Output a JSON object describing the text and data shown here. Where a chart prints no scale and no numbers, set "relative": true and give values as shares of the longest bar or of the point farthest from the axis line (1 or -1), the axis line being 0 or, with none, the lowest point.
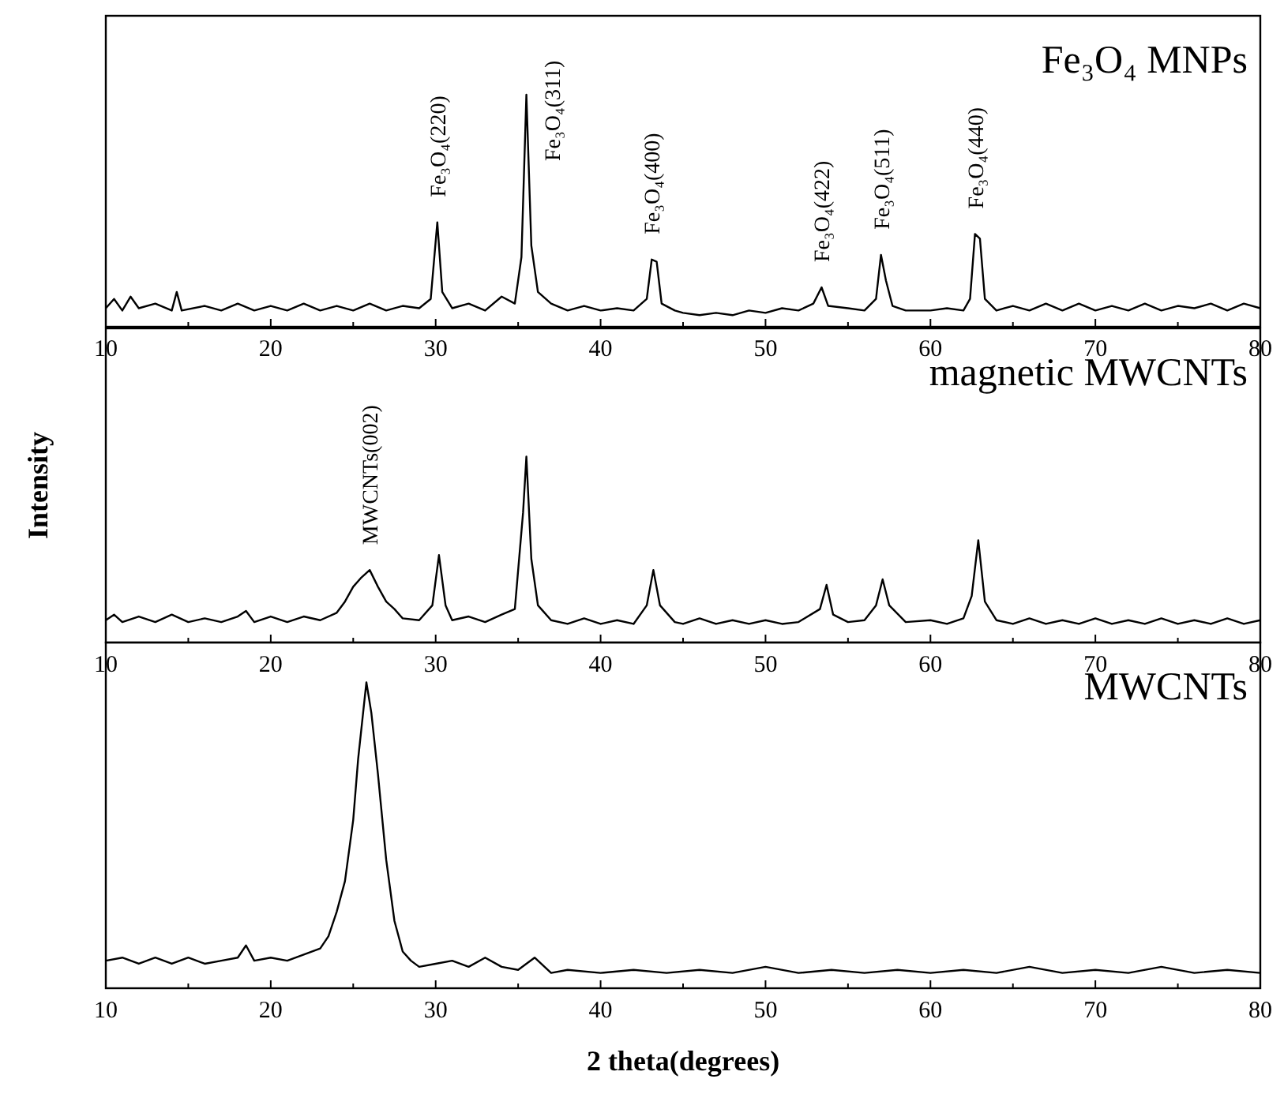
{
  "chart_data": [
    {
      "type": "line",
      "title": "Fe₃O₄ MNPs",
      "relative": true,
      "xlim": [
        10,
        80
      ],
      "xticks": [
        10,
        {
          "value": 15,
          "label": null
        },
        20,
        {
          "value": 25,
          "label": null
        },
        30,
        {
          "value": 35,
          "label": null
        },
        40,
        {
          "value": 45,
          "label": null
        },
        50,
        {
          "value": 55,
          "label": null
        },
        60,
        {
          "value": 65,
          "label": null
        },
        70,
        {
          "value": 75,
          "label": null
        },
        80
      ],
      "x": [
        10,
        10.5,
        11,
        11.5,
        12,
        13,
        14,
        14.3,
        14.6,
        16,
        17,
        18,
        19,
        20,
        21,
        22,
        23,
        24,
        25,
        26,
        27,
        28,
        29,
        29.7,
        30.1,
        30.4,
        31,
        32,
        33,
        34,
        34.8,
        35.2,
        35.5,
        35.8,
        36.2,
        37,
        38,
        39,
        40,
        41,
        42,
        42.8,
        43.1,
        43.4,
        43.7,
        44.5,
        45,
        46,
        47,
        48,
        49,
        50,
        51,
        52,
        52.9,
        53.4,
        53.8,
        55,
        56,
        56.7,
        57.0,
        57.3,
        57.7,
        58.5,
        60,
        61,
        62,
        62.4,
        62.7,
        63,
        63.3,
        64,
        65,
        66,
        67,
        68,
        69,
        70,
        71,
        72,
        73,
        74,
        75,
        76,
        77,
        78,
        79,
        80
      ],
      "series": [
        {
          "color": "#000000",
          "values": [
            0.08,
            0.12,
            0.07,
            0.13,
            0.08,
            0.1,
            0.07,
            0.15,
            0.07,
            0.09,
            0.07,
            0.1,
            0.07,
            0.09,
            0.07,
            0.1,
            0.07,
            0.09,
            0.07,
            0.1,
            0.07,
            0.09,
            0.08,
            0.12,
            0.45,
            0.15,
            0.08,
            0.1,
            0.07,
            0.13,
            0.1,
            0.3,
            1,
            0.35,
            0.15,
            0.1,
            0.07,
            0.09,
            0.07,
            0.08,
            0.07,
            0.12,
            0.29,
            0.28,
            0.1,
            0.07,
            0.06,
            0.05,
            0.06,
            0.05,
            0.07,
            0.06,
            0.08,
            0.07,
            0.1,
            0.17,
            0.09,
            0.08,
            0.07,
            0.12,
            0.31,
            0.2,
            0.09,
            0.07,
            0.07,
            0.08,
            0.07,
            0.12,
            0.4,
            0.38,
            0.12,
            0.07,
            0.09,
            0.07,
            0.1,
            0.07,
            0.1,
            0.07,
            0.09,
            0.07,
            0.1,
            0.07,
            0.09,
            0.08,
            0.1,
            0.07,
            0.1,
            0.08
          ]
        }
      ],
      "annotations": [
        {
          "text": "Fe₃O₄(220)",
          "x": 30.1,
          "y": 0.45
        },
        {
          "text": "Fe₃O₄(311)",
          "x": 35.5,
          "y": 1
        },
        {
          "text": "Fe₃O₄(400)",
          "x": 43.1,
          "y": 0.29
        },
        {
          "text": "Fe₃O₄(422)",
          "x": 53.4,
          "y": 0.17
        },
        {
          "text": "Fe₃O₄(511)",
          "x": 57.0,
          "y": 0.31
        },
        {
          "text": "Fe₃O₄(440)",
          "x": 62.7,
          "y": 0.4
        }
      ]
    },
    {
      "type": "line",
      "title": "magnetic MWCNTs",
      "ylabel": "Intensity",
      "relative": true,
      "xlim": [
        10,
        80
      ],
      "xticks": [
        10,
        {
          "value": 15,
          "label": null
        },
        20,
        {
          "value": 25,
          "label": null
        },
        30,
        {
          "value": 35,
          "label": null
        },
        40,
        {
          "value": 45,
          "label": null
        },
        50,
        {
          "value": 55,
          "label": null
        },
        60,
        {
          "value": 65,
          "label": null
        },
        70,
        {
          "value": 75,
          "label": null
        },
        80
      ],
      "x": [
        10,
        10.5,
        11,
        12,
        13,
        14,
        15,
        16,
        17,
        18,
        18.5,
        19,
        20,
        21,
        22,
        23,
        24,
        24.5,
        25,
        25.5,
        26,
        26.5,
        27,
        27.5,
        28,
        29,
        29.8,
        30.2,
        30.6,
        31,
        32,
        33,
        34,
        34.8,
        35.3,
        35.5,
        35.8,
        36.2,
        37,
        38,
        39,
        40,
        41,
        42,
        42.8,
        43.2,
        43.6,
        44.5,
        45,
        46,
        47,
        48,
        49,
        50,
        51,
        52,
        53.3,
        53.7,
        54.1,
        55,
        56,
        56.7,
        57.1,
        57.5,
        58.5,
        60,
        61,
        62,
        62.5,
        62.9,
        63.3,
        64,
        65,
        66,
        67,
        68,
        69,
        70,
        71,
        72,
        73,
        74,
        75,
        76,
        77,
        78,
        79,
        80
      ],
      "series": [
        {
          "color": "#000000",
          "values": [
            0.12,
            0.15,
            0.11,
            0.14,
            0.11,
            0.15,
            0.11,
            0.13,
            0.11,
            0.14,
            0.17,
            0.11,
            0.14,
            0.11,
            0.14,
            0.12,
            0.16,
            0.22,
            0.3,
            0.35,
            0.39,
            0.3,
            0.22,
            0.18,
            0.13,
            0.12,
            0.2,
            0.47,
            0.2,
            0.12,
            0.14,
            0.11,
            0.15,
            0.18,
            0.7,
            1,
            0.45,
            0.2,
            0.12,
            0.1,
            0.13,
            0.1,
            0.12,
            0.1,
            0.2,
            0.39,
            0.2,
            0.11,
            0.1,
            0.13,
            0.1,
            0.12,
            0.1,
            0.12,
            0.1,
            0.11,
            0.18,
            0.31,
            0.15,
            0.11,
            0.12,
            0.2,
            0.34,
            0.2,
            0.11,
            0.12,
            0.1,
            0.13,
            0.25,
            0.55,
            0.22,
            0.12,
            0.1,
            0.13,
            0.1,
            0.12,
            0.1,
            0.13,
            0.1,
            0.12,
            0.1,
            0.13,
            0.1,
            0.12,
            0.1,
            0.13,
            0.1,
            0.12
          ]
        }
      ],
      "annotations": [
        {
          "text": "MWCNTs(002)",
          "x": 26,
          "y": 0.39
        }
      ]
    },
    {
      "type": "line",
      "title": "MWCNTs",
      "xlabel": "2 theta(degrees)",
      "relative": true,
      "xlim": [
        10,
        80
      ],
      "xticks": [
        10,
        {
          "value": 15,
          "label": null
        },
        20,
        {
          "value": 25,
          "label": null
        },
        30,
        {
          "value": 35,
          "label": null
        },
        40,
        {
          "value": 45,
          "label": null
        },
        50,
        {
          "value": 55,
          "label": null
        },
        60,
        {
          "value": 65,
          "label": null
        },
        70,
        {
          "value": 75,
          "label": null
        },
        80
      ],
      "x": [
        10,
        11,
        12,
        13,
        14,
        15,
        16,
        17,
        18,
        18.5,
        19,
        20,
        21,
        22,
        23,
        23.5,
        24,
        24.5,
        25,
        25.3,
        25.6,
        25.8,
        26.1,
        26.5,
        27,
        27.5,
        28,
        28.5,
        29,
        30,
        31,
        32,
        33,
        34,
        35,
        36,
        37,
        38,
        40,
        42,
        44,
        46,
        48,
        50,
        52,
        54,
        56,
        58,
        60,
        62,
        64,
        66,
        68,
        70,
        72,
        74,
        76,
        78,
        80
      ],
      "series": [
        {
          "color": "#000000",
          "values": [
            0.09,
            0.1,
            0.08,
            0.1,
            0.08,
            0.1,
            0.08,
            0.09,
            0.1,
            0.14,
            0.09,
            0.1,
            0.09,
            0.11,
            0.13,
            0.17,
            0.25,
            0.35,
            0.55,
            0.75,
            0.9,
            1,
            0.9,
            0.7,
            0.42,
            0.22,
            0.12,
            0.09,
            0.07,
            0.08,
            0.09,
            0.07,
            0.1,
            0.07,
            0.06,
            0.1,
            0.05,
            0.06,
            0.05,
            0.06,
            0.05,
            0.06,
            0.05,
            0.07,
            0.05,
            0.06,
            0.05,
            0.06,
            0.05,
            0.06,
            0.05,
            0.07,
            0.05,
            0.06,
            0.05,
            0.07,
            0.05,
            0.06,
            0.05
          ]
        }
      ]
    }
  ]
}
